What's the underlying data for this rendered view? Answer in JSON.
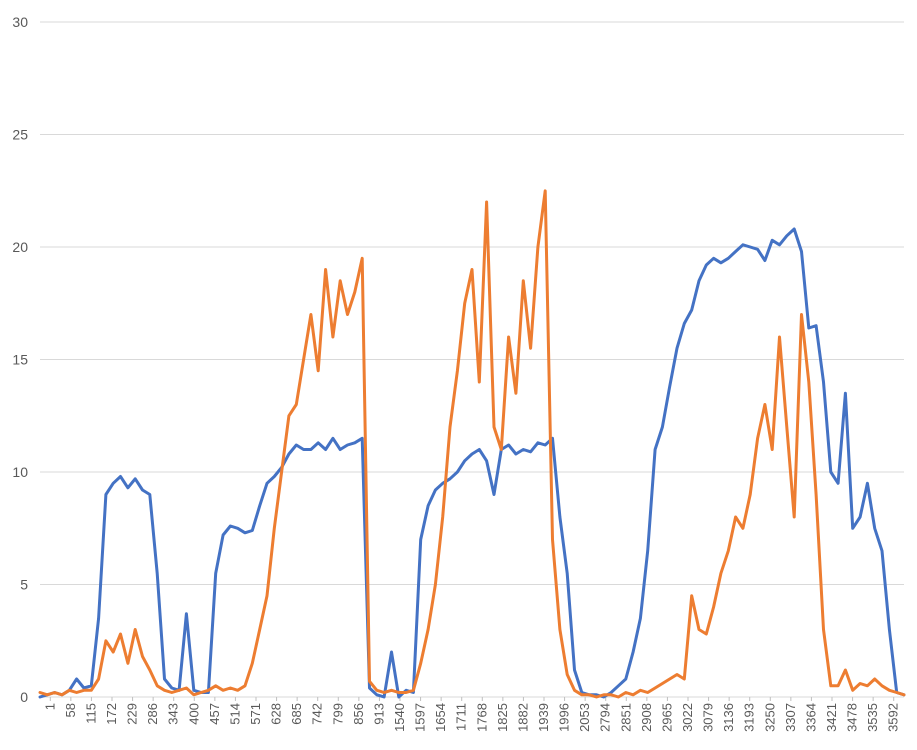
{
  "chart_data": {
    "type": "line",
    "title": "",
    "xlabel": "",
    "ylabel": "",
    "ylim": [
      0,
      30
    ],
    "yticks": [
      0,
      5,
      10,
      15,
      20,
      25,
      30
    ],
    "grid": "horizontal",
    "legend": "none",
    "x_tick_labels": [
      "1",
      "58",
      "115",
      "172",
      "229",
      "286",
      "343",
      "400",
      "457",
      "514",
      "571",
      "628",
      "685",
      "742",
      "799",
      "856",
      "913",
      "1540",
      "1597",
      "1654",
      "1711",
      "1768",
      "1825",
      "1882",
      "1939",
      "1996",
      "2053",
      "2794",
      "2851",
      "2908",
      "2965",
      "3022",
      "3079",
      "3136",
      "3193",
      "3250",
      "3307",
      "3364",
      "3421",
      "3478",
      "3535",
      "3592"
    ],
    "series": [
      {
        "color": "#4472C4",
        "values": [
          0.0,
          0.1,
          0.2,
          0.1,
          0.3,
          0.8,
          0.4,
          0.5,
          3.5,
          9.0,
          9.5,
          9.8,
          9.3,
          9.7,
          9.2,
          9.0,
          5.5,
          0.8,
          0.4,
          0.3,
          3.7,
          0.3,
          0.2,
          0.2,
          5.5,
          7.2,
          7.6,
          7.5,
          7.3,
          7.4,
          8.5,
          9.5,
          9.8,
          10.2,
          10.8,
          11.2,
          11.0,
          11.0,
          11.3,
          11.0,
          11.5,
          11.0,
          11.2,
          11.3,
          11.5,
          0.4,
          0.1,
          0.0,
          2.0,
          0.0,
          0.3,
          0.2,
          7.0,
          8.5,
          9.2,
          9.5,
          9.7,
          10.0,
          10.5,
          10.8,
          11.0,
          10.5,
          9.0,
          11.0,
          11.2,
          10.8,
          11.0,
          10.9,
          11.3,
          11.2,
          11.5,
          8.0,
          5.5,
          1.2,
          0.2,
          0.1,
          0.1,
          0.0,
          0.2,
          0.5,
          0.8,
          2.0,
          3.5,
          6.5,
          11.0,
          12.0,
          13.8,
          15.5,
          16.6,
          17.2,
          18.5,
          19.2,
          19.5,
          19.3,
          19.5,
          19.8,
          20.1,
          20.0,
          19.9,
          19.4,
          20.3,
          20.1,
          20.5,
          20.8,
          19.8,
          16.4,
          16.5,
          14.0,
          10.0,
          9.5,
          13.5,
          7.5,
          8.0,
          9.5,
          7.5,
          6.5,
          3.0,
          0.2,
          0.1
        ]
      },
      {
        "color": "#ED7D31",
        "values": [
          0.2,
          0.1,
          0.2,
          0.1,
          0.3,
          0.2,
          0.3,
          0.3,
          0.8,
          2.5,
          2.0,
          2.8,
          1.5,
          3.0,
          1.8,
          1.2,
          0.5,
          0.3,
          0.2,
          0.3,
          0.4,
          0.1,
          0.2,
          0.3,
          0.5,
          0.3,
          0.4,
          0.3,
          0.5,
          1.5,
          3.0,
          4.5,
          7.5,
          10.0,
          12.5,
          13.0,
          15.0,
          17.0,
          14.5,
          19.0,
          16.0,
          18.5,
          17.0,
          18.0,
          19.5,
          0.7,
          0.3,
          0.2,
          0.3,
          0.2,
          0.2,
          0.3,
          1.5,
          3.0,
          5.0,
          8.0,
          12.0,
          14.5,
          17.5,
          19.0,
          14.0,
          22.0,
          12.0,
          11.0,
          16.0,
          13.5,
          18.5,
          15.5,
          20.0,
          22.5,
          7.0,
          3.0,
          1.0,
          0.3,
          0.1,
          0.1,
          0.0,
          0.1,
          0.1,
          0.0,
          0.2,
          0.1,
          0.3,
          0.2,
          0.4,
          0.6,
          0.8,
          1.0,
          0.8,
          4.5,
          3.0,
          2.8,
          4.0,
          5.5,
          6.5,
          8.0,
          7.5,
          9.0,
          11.5,
          13.0,
          11.0,
          16.0,
          12.0,
          8.0,
          17.0,
          14.0,
          9.0,
          3.0,
          0.5,
          0.5,
          1.2,
          0.3,
          0.6,
          0.5,
          0.8,
          0.5,
          0.3,
          0.2,
          0.1
        ]
      }
    ]
  }
}
